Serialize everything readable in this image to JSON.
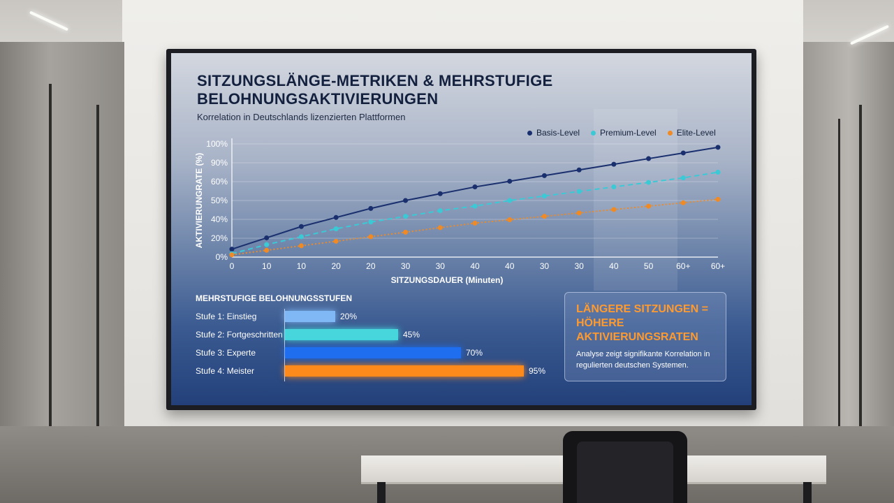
{
  "presentation": {
    "title": "SITZUNGSLÄNGE-METRIKEN & MEHRSTUFIGE BELOHNUNGSAKTIVIERUNGEN",
    "subtitle": "Korrelation in Deutschlands lizenzierten Plattformen"
  },
  "chart_data": [
    {
      "type": "line",
      "title": "SITZUNGSLÄNGE-METRIKEN & MEHRSTUFIGE BELOHNUNGSAKTIVIERUNGEN",
      "subtitle": "Korrelation in Deutschlands lizenzierten Plattformen",
      "xlabel": "SITZUNGSDAUER (Minuten)",
      "ylabel": "AKTIVIERUNGRATE (%)",
      "categories": [
        "0",
        "10",
        "10",
        "20",
        "20",
        "30",
        "30",
        "40",
        "40",
        "30",
        "30",
        "40",
        "50",
        "60+",
        "60+"
      ],
      "yticks": [
        "0%",
        "20%",
        "40%",
        "50%",
        "60%",
        "90%",
        "100%"
      ],
      "ylim": [
        0,
        100
      ],
      "grid": true,
      "legend_position": "top-right",
      "series": [
        {
          "name": "Basis-Level",
          "color": "#1a2f6e",
          "style": "solid",
          "values": [
            7,
            17,
            27,
            35,
            43,
            50,
            56,
            62,
            67,
            72,
            77,
            82,
            87,
            92,
            97
          ]
        },
        {
          "name": "Premium-Level",
          "color": "#3cc9d6",
          "style": "dashed",
          "values": [
            3,
            11,
            18,
            25,
            31,
            36,
            41,
            45,
            50,
            54,
            58,
            62,
            66,
            70,
            75
          ]
        },
        {
          "name": "Elite-Level",
          "color": "#f08a24",
          "style": "dotted",
          "values": [
            2,
            6,
            10,
            14,
            18,
            22,
            26,
            30,
            33,
            36,
            39,
            42,
            45,
            48,
            51
          ]
        }
      ]
    },
    {
      "type": "bar",
      "title": "MEHRSTUFIGE BELOHNUNGSSTUFEN",
      "orientation": "horizontal",
      "categories": [
        "Stufe 1: Einstieg",
        "Stufe 2: Fortgeschritten",
        "Stufe 3: Experte",
        "Stufe 4: Meister"
      ],
      "values": [
        20,
        45,
        70,
        95
      ],
      "value_labels": [
        "20%",
        "45%",
        "70%",
        "95%"
      ],
      "colors": [
        "#7fb8f5",
        "#46d6dc",
        "#1f6ef0",
        "#ff8a1c"
      ],
      "xlim": [
        0,
        100
      ]
    }
  ],
  "callout": {
    "headline": "LÄNGERE SITZUNGEN = HÖHERE AKTIVIERUNGSRATEN",
    "text": "Analyse zeigt signifikante Korrelation in regulierten deutschen Systemen."
  }
}
